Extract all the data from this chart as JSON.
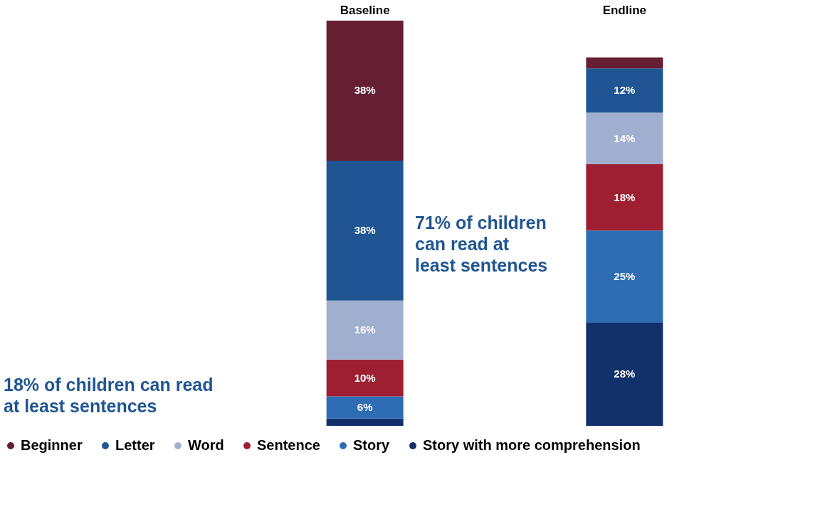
{
  "chart_data": {
    "type": "bar",
    "stacked": true,
    "categories": [
      "Baseline",
      "Endline"
    ],
    "series": [
      {
        "name": "Story with more comprehension",
        "color": "#12306a",
        "values": [
          2,
          28
        ],
        "value_labels": [
          null,
          "28%"
        ]
      },
      {
        "name": "Story",
        "color": "#2e6db4",
        "values": [
          6,
          25
        ],
        "value_labels": [
          "6%",
          "25%"
        ]
      },
      {
        "name": "Sentence",
        "color": "#9e1f32",
        "values": [
          10,
          18
        ],
        "value_labels": [
          "10%",
          "18%"
        ]
      },
      {
        "name": "Word",
        "color": "#a0afd0",
        "values": [
          16,
          14
        ],
        "value_labels": [
          "16%",
          "14%"
        ]
      },
      {
        "name": "Letter",
        "color": "#1f5592",
        "values": [
          38,
          12
        ],
        "value_labels": [
          "38%",
          "12%"
        ]
      },
      {
        "name": "Beginner",
        "color": "#661e32",
        "values": [
          38,
          3
        ],
        "value_labels": [
          "38%",
          null
        ]
      }
    ],
    "legend": "bottom",
    "annotations": [
      "18% of children can read at least sentences",
      "71% of children can read at least sentences"
    ]
  }
}
